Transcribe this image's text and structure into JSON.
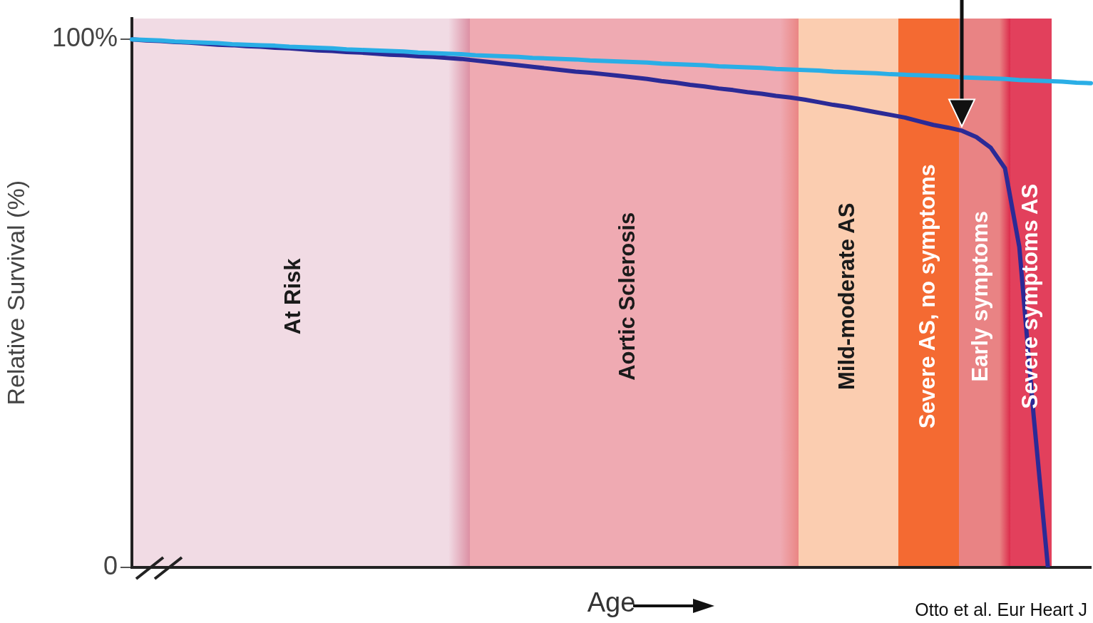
{
  "chart_data": {
    "type": "line",
    "xlabel": "Age",
    "ylabel": "Relative Survival (%)",
    "categories": [
      null,
      null,
      null,
      null,
      null,
      null,
      null,
      null,
      null,
      null,
      null,
      null,
      null,
      null,
      null,
      null,
      null,
      null,
      null,
      null,
      null,
      null,
      null,
      null,
      null,
      null,
      null,
      null,
      null,
      null,
      null,
      null,
      null,
      null,
      null,
      null,
      null,
      null,
      null,
      null,
      null,
      null,
      null,
      null,
      null,
      null,
      null,
      null,
      null,
      null,
      null,
      null,
      null,
      null,
      null,
      null,
      null,
      null,
      null,
      null,
      null,
      null,
      null,
      null,
      null,
      null,
      null,
      null
    ],
    "ylim": [
      0,
      104
    ],
    "yticks": [
      0,
      {
        "value": 100,
        "label": "100%"
      }
    ],
    "tick_labels": "y",
    "marker": "none",
    "line_style": "solid",
    "series": [
      {
        "color": "#2aaee6",
        "values": [
          100,
          99.9,
          99.8,
          99.6,
          99.5,
          99.4,
          99.3,
          99.1,
          99.0,
          98.9,
          98.8,
          98.6,
          98.5,
          98.4,
          98.3,
          98.1,
          98.0,
          97.9,
          97.8,
          97.7,
          97.5,
          97.4,
          97.3,
          97.2,
          97.0,
          96.9,
          96.8,
          96.7,
          96.5,
          96.4,
          96.3,
          96.2,
          96.0,
          95.9,
          95.8,
          95.7,
          95.6,
          95.4,
          95.3,
          95.2,
          95.1,
          94.9,
          94.8,
          94.7,
          94.6,
          94.4,
          94.3,
          94.2,
          94.1,
          93.9,
          93.8,
          93.7,
          93.6,
          93.4,
          93.3,
          93.2,
          93.1,
          93.0,
          92.8,
          92.7,
          92.6,
          92.5,
          92.3,
          92.2,
          92.1,
          92.0,
          91.8,
          91.7
        ]
      },
      {
        "color": "#2b2a96",
        "values": [
          100,
          99.8,
          99.7,
          99.5,
          99.4,
          99.2,
          99.0,
          98.9,
          98.7,
          98.6,
          98.4,
          98.3,
          98.1,
          97.9,
          97.8,
          97.6,
          97.5,
          97.3,
          97.1,
          97.0,
          96.8,
          96.7,
          96.5,
          96.3,
          96.0,
          95.7,
          95.4,
          95.1,
          94.8,
          94.5,
          94.2,
          93.9,
          93.7,
          93.4,
          93.1,
          92.8,
          92.5,
          92.1,
          91.8,
          91.4,
          91.1,
          90.7,
          90.4,
          90.0,
          89.7,
          89.3,
          89.0,
          88.6,
          88.1,
          87.6,
          87.2,
          86.7,
          86.2,
          85.7,
          85.2,
          84.5,
          83.8,
          83.3,
          82.7,
          81.5,
          79.5,
          75.6,
          60.7,
          28.8,
          0,
          null,
          null,
          null
        ]
      }
    ],
    "grid": false,
    "legend": false,
    "annotations": [
      "At Risk",
      "Aortic Sclerosis",
      "Mild-moderate AS",
      "Severe AS, no symptoms",
      "Early symptoms",
      "Severe symptoms AS",
      "Otto et al. Eur Heart J"
    ]
  }
}
